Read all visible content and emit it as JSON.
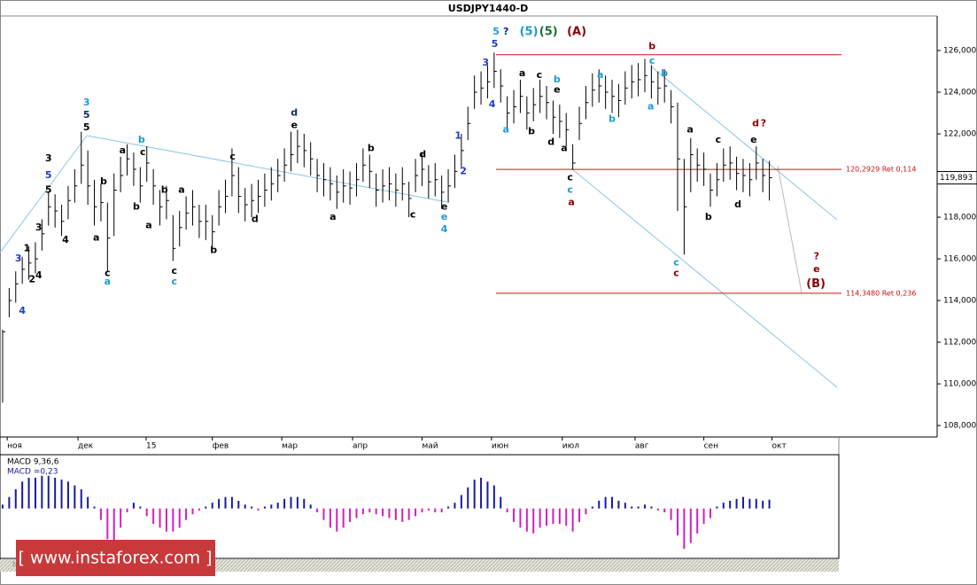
{
  "title": "USDJPY1440-D",
  "watermark": "[ www.instaforex.com ]",
  "chart_data": [
    {
      "type": "ohlc",
      "color": "#000000",
      "xlim": [
        -0.4,
        127.6
      ],
      "xticks": [
        {
          "value": 0.7,
          "label": "ноя"
        },
        {
          "value": 11.5,
          "label": "дек"
        },
        {
          "value": 21.9,
          "label": "15"
        },
        {
          "value": 32,
          "label": "фев"
        },
        {
          "value": 42.6,
          "label": "мар"
        },
        {
          "value": 53.4,
          "label": "апр"
        },
        {
          "value": 64,
          "label": "май"
        },
        {
          "value": 74.6,
          "label": "июн"
        },
        {
          "value": 85.4,
          "label": "июл"
        },
        {
          "value": 96.5,
          "label": "авг"
        },
        {
          "value": 107,
          "label": "сен"
        },
        {
          "value": 117.4,
          "label": "окт"
        }
      ],
      "ylim": [
        107.45,
        127.66
      ],
      "yticks": [
        {
          "value": 108,
          "label": "108,000"
        },
        {
          "value": 110,
          "label": "110,000"
        },
        {
          "value": 112,
          "label": "112,000"
        },
        {
          "value": 114,
          "label": "114,000"
        },
        {
          "value": 116,
          "label": "116,000"
        },
        {
          "value": 118,
          "label": "118,000"
        },
        {
          "value": 120,
          "label": "120,000"
        },
        {
          "value": 122,
          "label": "122,000"
        },
        {
          "value": 124,
          "label": "124,000"
        },
        {
          "value": 126,
          "label": "126,000"
        }
      ],
      "high": [
        112.6,
        114.6,
        115.4,
        116.1,
        116.6,
        116.8,
        117.9,
        119.2,
        119.1,
        118.6,
        119.5,
        120.3,
        122.1,
        121.2,
        119.8,
        119.6,
        118.7,
        120.1,
        120.9,
        121.5,
        121.1,
        120.4,
        121.4,
        120.3,
        119.3,
        119.5,
        118.1,
        118.3,
        119.0,
        119.3,
        118.6,
        118.6,
        118.1,
        119.3,
        119.8,
        121.3,
        120.4,
        119.4,
        119.6,
        119.8,
        120.1,
        120.4,
        120.8,
        121.3,
        122.1,
        122.2,
        122.0,
        121.6,
        120.8,
        120.6,
        120.4,
        120.0,
        120.3,
        120.2,
        120.6,
        121.3,
        121.0,
        120.1,
        120.3,
        120.4,
        120.1,
        120.4,
        119.7,
        120.8,
        121.1,
        120.5,
        120.6,
        120.0,
        120.3,
        121.0,
        122.0,
        123.3,
        124.8,
        125.0,
        125.3,
        125.9,
        125.1,
        123.8,
        124.1,
        124.6,
        123.8,
        124.2,
        124.6,
        124.3,
        123.6,
        123.4,
        123.0,
        121.5,
        123.3,
        124.3,
        124.9,
        125.1,
        124.8,
        124.6,
        124.4,
        125.0,
        125.3,
        125.4,
        125.6,
        125.3,
        125.0,
        125.1,
        124.1,
        123.5,
        120.8,
        121.8,
        121.3,
        121.1,
        120.1,
        120.6,
        121.3,
        121.4,
        120.9,
        120.8,
        120.6,
        121.4,
        120.8,
        120.7
      ],
      "low": [
        109.1,
        113.2,
        113.9,
        114.8,
        115.0,
        115.3,
        116.4,
        117.6,
        117.5,
        117.1,
        117.9,
        118.7,
        119.6,
        118.6,
        117.6,
        117.8,
        115.4,
        117.1,
        119.2,
        120.0,
        119.5,
        118.7,
        119.7,
        118.6,
        117.6,
        117.9,
        115.9,
        116.6,
        117.4,
        117.6,
        117.0,
        116.9,
        116.5,
        117.6,
        118.2,
        119.0,
        118.2,
        117.8,
        118.0,
        118.2,
        118.5,
        118.8,
        119.2,
        119.7,
        120.2,
        120.6,
        120.4,
        120.0,
        119.2,
        119.0,
        118.8,
        118.4,
        118.7,
        118.6,
        119.0,
        119.7,
        119.4,
        118.5,
        118.7,
        118.8,
        118.5,
        118.8,
        118.0,
        119.2,
        119.5,
        118.9,
        119.0,
        118.4,
        118.7,
        119.4,
        120.4,
        121.7,
        123.2,
        123.4,
        123.7,
        124.2,
        123.5,
        122.2,
        122.5,
        123.0,
        122.2,
        122.6,
        123.0,
        122.7,
        122.0,
        121.8,
        121.4,
        120.3,
        121.7,
        122.7,
        123.3,
        123.5,
        123.2,
        123.0,
        122.8,
        123.4,
        123.7,
        123.8,
        124.0,
        123.7,
        123.4,
        123.5,
        122.5,
        118.3,
        116.2,
        119.2,
        119.7,
        119.5,
        118.5,
        119.0,
        119.7,
        119.8,
        119.3,
        119.2,
        119.0,
        119.8,
        119.2,
        118.8
      ],
      "close": [
        112.5,
        114,
        114.8,
        115.5,
        115.8,
        116,
        117.2,
        118.5,
        118.3,
        117.8,
        118.8,
        119.5,
        120.5,
        119.5,
        118.5,
        118.7,
        117,
        119.3,
        120,
        120.8,
        120.3,
        119.5,
        120.6,
        119.5,
        118.5,
        118.8,
        116.5,
        117.5,
        118.2,
        118.5,
        117.8,
        117.8,
        117.3,
        118.5,
        119,
        120,
        119,
        118.6,
        118.8,
        119,
        119.3,
        119.6,
        120,
        120.5,
        121,
        121.4,
        121.2,
        120.8,
        120,
        119.8,
        119.6,
        119.2,
        119.5,
        119.4,
        119.8,
        120.5,
        120.2,
        119.3,
        119.5,
        119.6,
        119.3,
        119.6,
        118.9,
        120,
        120.3,
        119.7,
        119.8,
        119.2,
        119.5,
        120.2,
        121.2,
        122.5,
        124,
        124.2,
        124.5,
        125,
        124.3,
        123,
        123.3,
        123.8,
        123,
        123.4,
        123.8,
        123.5,
        122.8,
        122.6,
        122.2,
        120.6,
        122.5,
        123.5,
        124.1,
        124.3,
        124,
        123.8,
        123.6,
        124.2,
        124.5,
        124.6,
        124.8,
        124.5,
        124.2,
        124.3,
        123.3,
        120.8,
        118.5,
        121,
        120.5,
        120.3,
        119.3,
        119.8,
        120.5,
        120.6,
        120.1,
        120,
        119.8,
        120.6,
        120,
        119.893
      ],
      "price_label": {
        "value": 119.893,
        "label": "119,893"
      },
      "levels": [
        {
          "value": 125.8,
          "color": "#d01010"
        },
        {
          "value": 120.2929,
          "label": "120,2929 Ret 0,114",
          "color": "#d01010"
        },
        {
          "value": 114.348,
          "label": "114,3480 Ret 0,236",
          "color": "#d01010"
        }
      ],
      "annotations": [
        {
          "text": "4",
          "x": 3.0,
          "y": 113.5,
          "color": "#1e3cc8"
        },
        {
          "text": "3",
          "x": 2.4,
          "y": 116.0,
          "color": "#1e3cc8"
        },
        {
          "text": "2",
          "x": 4.5,
          "y": 115.0,
          "color": "#000000"
        },
        {
          "text": "4",
          "x": 5.5,
          "y": 115.2,
          "color": "#000000"
        },
        {
          "text": "1",
          "x": 3.7,
          "y": 116.5,
          "color": "#000000"
        },
        {
          "text": "3",
          "x": 5.5,
          "y": 117.5,
          "color": "#000000"
        },
        {
          "text": "4",
          "x": 9.6,
          "y": 116.9,
          "color": "#000000"
        },
        {
          "text": "5",
          "x": 7.0,
          "y": 119.3,
          "color": "#000000"
        },
        {
          "text": "5",
          "x": 7.0,
          "y": 120.0,
          "color": "#1e3cc8"
        },
        {
          "text": "3",
          "x": 7.0,
          "y": 120.8,
          "color": "#000000"
        },
        {
          "text": "3",
          "x": 12.8,
          "y": 123.5,
          "color": "#1a9ad6"
        },
        {
          "text": "5",
          "x": 12.8,
          "y": 122.9,
          "color": "#0d2a6e"
        },
        {
          "text": "5",
          "x": 12.8,
          "y": 122.3,
          "color": "#000000"
        },
        {
          "text": "a",
          "x": 14.3,
          "y": 117.0,
          "color": "#000000"
        },
        {
          "text": "b",
          "x": 15.4,
          "y": 119.7,
          "color": "#000000"
        },
        {
          "text": "c",
          "x": 16.0,
          "y": 115.3,
          "color": "#000000"
        },
        {
          "text": "a",
          "x": 16.0,
          "y": 114.9,
          "color": "#1a9ad6"
        },
        {
          "text": "a",
          "x": 18.3,
          "y": 121.2,
          "color": "#000000"
        },
        {
          "text": "c",
          "x": 21.4,
          "y": 121.1,
          "color": "#000000"
        },
        {
          "text": "b",
          "x": 20.4,
          "y": 118.5,
          "color": "#000000"
        },
        {
          "text": "b",
          "x": 21.2,
          "y": 121.7,
          "color": "#1a9ad6"
        },
        {
          "text": "a",
          "x": 22.3,
          "y": 117.6,
          "color": "#000000"
        },
        {
          "text": "b",
          "x": 24.7,
          "y": 119.3,
          "color": "#000000"
        },
        {
          "text": "a",
          "x": 27.3,
          "y": 119.3,
          "color": "#000000"
        },
        {
          "text": "c",
          "x": 26.2,
          "y": 115.4,
          "color": "#000000"
        },
        {
          "text": "c",
          "x": 26.2,
          "y": 114.9,
          "color": "#1a9ad6"
        },
        {
          "text": "b",
          "x": 32.2,
          "y": 116.4,
          "color": "#000000"
        },
        {
          "text": "c",
          "x": 35.1,
          "y": 120.9,
          "color": "#000000"
        },
        {
          "text": "d",
          "x": 38.5,
          "y": 117.9,
          "color": "#000000"
        },
        {
          "text": "d",
          "x": 44.5,
          "y": 123.0,
          "color": "#0d2a6e"
        },
        {
          "text": "e",
          "x": 44.5,
          "y": 122.4,
          "color": "#000000"
        },
        {
          "text": "a",
          "x": 50.4,
          "y": 118.0,
          "color": "#000000"
        },
        {
          "text": "b",
          "x": 56.2,
          "y": 121.3,
          "color": "#000000"
        },
        {
          "text": "c",
          "x": 62.6,
          "y": 118.1,
          "color": "#000000"
        },
        {
          "text": "d",
          "x": 64.1,
          "y": 121.0,
          "color": "#000000"
        },
        {
          "text": "e",
          "x": 67.4,
          "y": 118.5,
          "color": "#000000"
        },
        {
          "text": "e",
          "x": 67.4,
          "y": 118.0,
          "color": "#1a9ad6"
        },
        {
          "text": "4",
          "x": 67.4,
          "y": 117.4,
          "color": "#1a9ad6"
        },
        {
          "text": "1",
          "x": 69.5,
          "y": 121.9,
          "color": "#1e3cc8"
        },
        {
          "text": "2",
          "x": 70.3,
          "y": 120.2,
          "color": "#1e3cc8"
        },
        {
          "text": "3",
          "x": 73.7,
          "y": 125.4,
          "color": "#1e3cc8"
        },
        {
          "text": "4",
          "x": 74.7,
          "y": 123.4,
          "color": "#1e3cc8"
        },
        {
          "text": "5",
          "x": 75.1,
          "y": 126.3,
          "color": "#1e3cc8"
        },
        {
          "text": "5",
          "x": 75.3,
          "y": 126.9,
          "color": "#1a9ad6"
        },
        {
          "text": "?",
          "x": 76.8,
          "y": 126.9,
          "color": "#0d2a6e"
        },
        {
          "text": "(5)",
          "x": 80.3,
          "y": 126.9,
          "color": "#1a9ad6"
        },
        {
          "text": "(5)",
          "x": 83.3,
          "y": 126.9,
          "color": "#1b6e2a"
        },
        {
          "text": "(A)",
          "x": 87.6,
          "y": 126.9,
          "color": "#8b0000"
        },
        {
          "text": "a",
          "x": 76.8,
          "y": 122.2,
          "color": "#1a9ad6"
        },
        {
          "text": "a",
          "x": 79.3,
          "y": 124.9,
          "color": "#000000"
        },
        {
          "text": "b",
          "x": 80.7,
          "y": 122.1,
          "color": "#000000"
        },
        {
          "text": "c",
          "x": 81.9,
          "y": 124.8,
          "color": "#000000"
        },
        {
          "text": "b",
          "x": 84.6,
          "y": 124.6,
          "color": "#1a9ad6"
        },
        {
          "text": "e",
          "x": 84.6,
          "y": 124.1,
          "color": "#000000"
        },
        {
          "text": "d",
          "x": 83.7,
          "y": 121.6,
          "color": "#000000"
        },
        {
          "text": "a",
          "x": 85.7,
          "y": 121.3,
          "color": "#000000"
        },
        {
          "text": "c",
          "x": 86.6,
          "y": 119.9,
          "color": "#000000"
        },
        {
          "text": "c",
          "x": 86.6,
          "y": 119.3,
          "color": "#1a9ad6"
        },
        {
          "text": "a",
          "x": 86.8,
          "y": 118.7,
          "color": "#8b0000"
        },
        {
          "text": "a",
          "x": 91.2,
          "y": 124.8,
          "color": "#1a9ad6"
        },
        {
          "text": "b",
          "x": 93.0,
          "y": 122.7,
          "color": "#1a9ad6"
        },
        {
          "text": "b",
          "x": 99.1,
          "y": 126.2,
          "color": "#8b0000"
        },
        {
          "text": "c",
          "x": 99.1,
          "y": 125.5,
          "color": "#1a9ad6"
        },
        {
          "text": "a",
          "x": 98.9,
          "y": 123.3,
          "color": "#1a9ad6"
        },
        {
          "text": "b",
          "x": 101.0,
          "y": 124.9,
          "color": "#1a9ad6"
        },
        {
          "text": "c",
          "x": 102.8,
          "y": 115.8,
          "color": "#1a9ad6"
        },
        {
          "text": "c",
          "x": 102.8,
          "y": 115.3,
          "color": "#8b0000"
        },
        {
          "text": "a",
          "x": 104.9,
          "y": 122.2,
          "color": "#000000"
        },
        {
          "text": "b",
          "x": 107.7,
          "y": 118.0,
          "color": "#000000"
        },
        {
          "text": "c",
          "x": 109.2,
          "y": 121.7,
          "color": "#000000"
        },
        {
          "text": "d",
          "x": 112.2,
          "y": 118.6,
          "color": "#000000"
        },
        {
          "text": "e",
          "x": 114.6,
          "y": 121.7,
          "color": "#000000"
        },
        {
          "text": "d",
          "x": 114.9,
          "y": 122.5,
          "color": "#8b0000"
        },
        {
          "text": "?",
          "x": 116.1,
          "y": 122.5,
          "color": "#8b0000"
        },
        {
          "text": "?",
          "x": 124.2,
          "y": 116.1,
          "color": "#8b0000"
        },
        {
          "text": "e",
          "x": 124.2,
          "y": 115.5,
          "color": "#8b0000"
        },
        {
          "text": "(B)",
          "x": 124.1,
          "y": 114.8,
          "color": "#8b0000"
        }
      ]
    },
    {
      "type": "macd",
      "indicator": "MACD 9,36,6",
      "readout": "MACD =0,23",
      "xlim": [
        -0.4,
        127.6
      ],
      "ylim": [
        -1.3,
        1.4
      ],
      "positive_color": "#1a1aa0",
      "negative_color": "#d020c0",
      "values": [
        0.1,
        0.3,
        0.5,
        0.7,
        0.8,
        0.8,
        0.85,
        0.85,
        0.8,
        0.75,
        0.7,
        0.6,
        0.5,
        0.3,
        0.05,
        -0.3,
        -0.8,
        -1.05,
        -0.5,
        -0.1,
        0.15,
        0.05,
        -0.2,
        -0.4,
        -0.5,
        -0.6,
        -0.6,
        -0.5,
        -0.3,
        -0.15,
        -0.05,
        0.05,
        0.15,
        0.25,
        0.3,
        0.3,
        0.2,
        0.1,
        0.05,
        -0.05,
        0.05,
        0.1,
        0.15,
        0.25,
        0.3,
        0.3,
        0.25,
        0.1,
        -0.1,
        -0.3,
        -0.5,
        -0.6,
        -0.5,
        -0.35,
        -0.25,
        -0.15,
        -0.1,
        -0.15,
        -0.2,
        -0.25,
        -0.3,
        -0.35,
        -0.3,
        -0.2,
        -0.1,
        -0.05,
        -0.1,
        -0.1,
        0.05,
        0.15,
        0.35,
        0.55,
        0.75,
        0.8,
        0.7,
        0.6,
        0.3,
        -0.1,
        -0.35,
        -0.5,
        -0.6,
        -0.65,
        -0.5,
        -0.45,
        -0.4,
        -0.4,
        -0.45,
        -0.6,
        -0.35,
        -0.15,
        0.05,
        0.2,
        0.3,
        0.3,
        0.2,
        0.15,
        0.05,
        0.05,
        0.1,
        0.05,
        -0.05,
        -0.1,
        -0.3,
        -0.7,
        -1.05,
        -0.9,
        -0.65,
        -0.4,
        -0.25,
        0.05,
        0.15,
        0.2,
        0.25,
        0.3,
        0.25,
        0.25,
        0.2,
        0.23
      ]
    }
  ]
}
